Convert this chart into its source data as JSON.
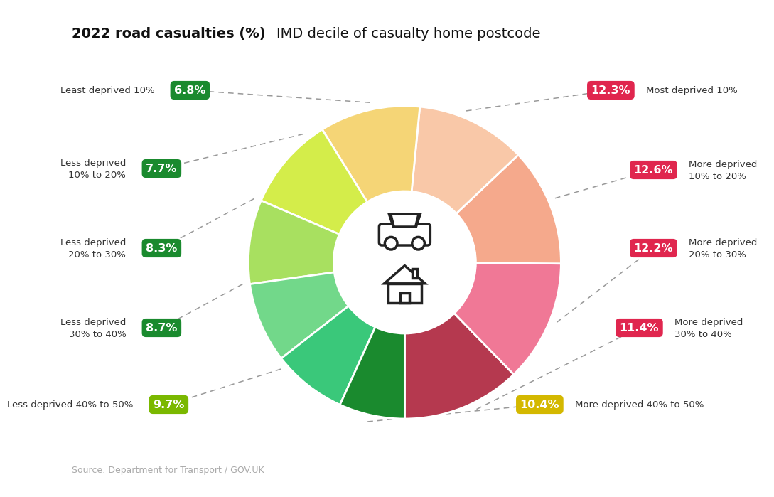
{
  "title_bold": "2022 road casualties (%)",
  "title_normal": "IMD decile of casualty home postcode",
  "source": "Source: Department for Transport / GOV.UK",
  "slices": [
    {
      "label": "Most deprived 10%",
      "value": 12.3,
      "color": "#b5394f",
      "pct": "12.3%",
      "side": "right"
    },
    {
      "label": "More deprived\n10% to 20%",
      "value": 12.6,
      "color": "#f07896",
      "pct": "12.6%",
      "side": "right"
    },
    {
      "label": "More deprived\n20% to 30%",
      "value": 12.2,
      "color": "#f5a98c",
      "pct": "12.2%",
      "side": "right"
    },
    {
      "label": "More deprived\n30% to 40%",
      "value": 11.4,
      "color": "#f9c8a8",
      "pct": "11.4%",
      "side": "right"
    },
    {
      "label": "More deprived 40% to 50%",
      "value": 10.4,
      "color": "#f5d576",
      "pct": "10.4%",
      "side": "right"
    },
    {
      "label": "Less deprived 40% to 50%",
      "value": 9.7,
      "color": "#d4ed4a",
      "pct": "9.7%",
      "side": "left"
    },
    {
      "label": "Less deprived\n30% to 40%",
      "value": 8.7,
      "color": "#a8e060",
      "pct": "8.7%",
      "side": "left"
    },
    {
      "label": "Less deprived\n20% to 30%",
      "value": 8.3,
      "color": "#72d88a",
      "pct": "8.3%",
      "side": "left"
    },
    {
      "label": "Less deprived\n10% to 20%",
      "value": 7.7,
      "color": "#3ac87a",
      "pct": "7.7%",
      "side": "left"
    },
    {
      "label": "Least deprived 10%",
      "value": 6.8,
      "color": "#1a8a2e",
      "pct": "6.8%",
      "side": "left"
    }
  ],
  "right_badge_color": "#e0264e",
  "left_badge_color": "#1a8a2e",
  "yellow_badge_color": "#d4b800",
  "lime_badge_color": "#7ab800",
  "background": "#ffffff"
}
